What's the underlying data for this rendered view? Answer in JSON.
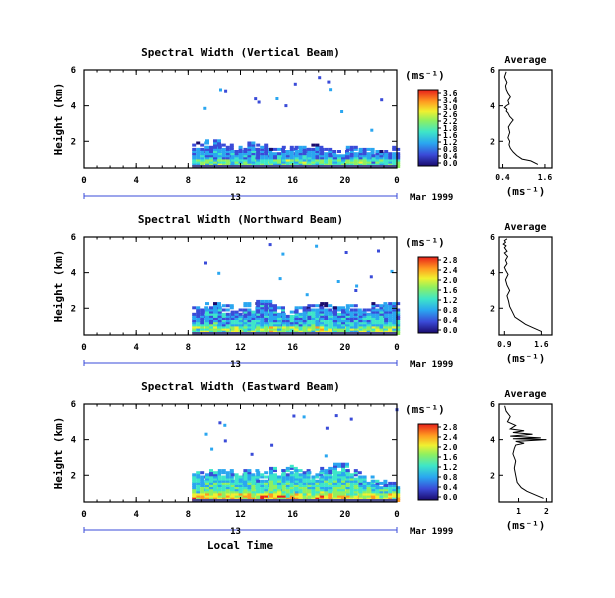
{
  "figure": {
    "xlabel": "Local Time",
    "colors": {
      "axis": "#000000",
      "background": "#ffffff",
      "bottom_band": "#4a4a8a"
    }
  },
  "chart_data": [
    {
      "type": "heatmap",
      "title": "Spectral Width (Vertical Beam)",
      "ylabel": "Height (km)",
      "xlim": [
        0,
        24
      ],
      "ylim": [
        0.5,
        6
      ],
      "x_ticks": [
        "0",
        "4",
        "8",
        "12",
        "16",
        "20",
        "0"
      ],
      "y_ticks": [
        "2",
        "4",
        "6"
      ],
      "date_tick": "13",
      "date_label": "Mar 1999",
      "colorbar": {
        "unit": "(ms⁻¹)",
        "min": 0.0,
        "max": 3.6,
        "ticks": [
          "3.6",
          "3.4",
          "3.0",
          "2.6",
          "2.2",
          "1.8",
          "1.6",
          "1.2",
          "0.8",
          "0.4",
          "0.0"
        ]
      },
      "data_extent": {
        "start_hour": 8.3,
        "end_hour": 24,
        "layer_top_km": [
          1.9,
          2.0,
          1.8,
          1.7,
          1.9,
          1.8,
          1.5,
          1.6,
          1.7,
          1.8,
          1.5,
          1.4,
          1.6,
          1.5,
          1.4,
          1.6
        ],
        "mean_width": 0.8
      },
      "profile": {
        "title": "Average",
        "xlabel": "(ms⁻¹)",
        "xlim": [
          0.3,
          1.8
        ],
        "ylim": [
          0.5,
          6
        ],
        "x_ticks": [
          "0.4",
          "1.6"
        ],
        "y_ticks": [
          "2",
          "4",
          "6"
        ],
        "x": [
          1.4,
          1.2,
          0.95,
          0.8,
          0.7,
          0.62,
          0.58,
          0.6,
          0.55,
          0.6,
          0.56,
          0.62,
          0.7,
          0.6,
          0.55,
          0.5,
          0.52,
          0.45,
          0.5,
          0.58,
          0.55,
          0.62,
          0.55,
          0.5,
          0.48,
          0.52,
          0.45,
          0.5
        ],
        "y": [
          0.7,
          0.9,
          1.0,
          1.2,
          1.4,
          1.6,
          1.8,
          2.0,
          2.2,
          2.5,
          2.8,
          3.0,
          3.2,
          3.4,
          3.6,
          3.7,
          3.8,
          3.9,
          4.0,
          4.1,
          4.3,
          4.5,
          4.7,
          4.9,
          5.1,
          5.3,
          5.6,
          5.9
        ]
      }
    },
    {
      "type": "heatmap",
      "title": "Spectral Width (Northward Beam)",
      "ylabel": "Height (km)",
      "xlim": [
        0,
        24
      ],
      "ylim": [
        0.5,
        6
      ],
      "x_ticks": [
        "0",
        "4",
        "8",
        "12",
        "16",
        "20",
        "0"
      ],
      "y_ticks": [
        "2",
        "4",
        "6"
      ],
      "date_tick": "13",
      "date_label": "Mar 1999",
      "colorbar": {
        "unit": "(ms⁻¹)",
        "min": 0.0,
        "max": 2.8,
        "ticks": [
          "2.8",
          "2.4",
          "2.0",
          "1.6",
          "1.2",
          "0.8",
          "0.4",
          "0.0"
        ]
      },
      "data_extent": {
        "start_hour": 8.3,
        "end_hour": 24,
        "layer_top_km": [
          2.0,
          2.3,
          2.1,
          1.9,
          2.2,
          2.4,
          2.1,
          1.8,
          2.0,
          2.3,
          2.2,
          2.0,
          2.1,
          1.9,
          2.2,
          2.3
        ],
        "mean_width": 0.7
      },
      "profile": {
        "title": "Average",
        "xlabel": "(ms⁻¹)",
        "xlim": [
          0.8,
          1.8
        ],
        "ylim": [
          0.5,
          6
        ],
        "x_ticks": [
          "0.9",
          "1.6"
        ],
        "y_ticks": [
          "2",
          "4",
          "6"
        ],
        "x": [
          1.6,
          1.45,
          1.3,
          1.2,
          1.1,
          1.05,
          1.0,
          0.98,
          0.95,
          1.0,
          0.95,
          0.92,
          0.97,
          0.93,
          0.9,
          0.95,
          0.92,
          0.96,
          0.9,
          0.95,
          0.9,
          0.93,
          0.88,
          0.92,
          0.9,
          0.95
        ],
        "y": [
          0.7,
          0.9,
          1.1,
          1.3,
          1.5,
          1.8,
          2.1,
          2.4,
          2.7,
          3.0,
          3.3,
          3.6,
          3.9,
          4.1,
          4.3,
          4.5,
          4.7,
          4.9,
          5.1,
          5.2,
          5.4,
          5.5,
          5.6,
          5.7,
          5.8,
          5.9
        ]
      }
    },
    {
      "type": "heatmap",
      "title": "Spectral Width (Eastward Beam)",
      "ylabel": "Height (km)",
      "xlim": [
        0,
        24
      ],
      "ylim": [
        0.5,
        6
      ],
      "x_ticks": [
        "0",
        "4",
        "8",
        "12",
        "16",
        "20",
        "0"
      ],
      "y_ticks": [
        "2",
        "4",
        "6"
      ],
      "date_tick": "13",
      "date_label": "Mar 1999",
      "colorbar": {
        "unit": "(ms⁻¹)",
        "min": 0.0,
        "max": 2.8,
        "ticks": [
          "2.8",
          "2.4",
          "2.0",
          "1.6",
          "1.2",
          "0.8",
          "0.4",
          "0.0"
        ]
      },
      "data_extent": {
        "start_hour": 8.3,
        "end_hour": 24,
        "layer_top_km": [
          2.1,
          2.2,
          2.3,
          2.0,
          2.2,
          2.1,
          2.4,
          2.5,
          2.3,
          2.1,
          2.4,
          2.6,
          2.2,
          1.9,
          1.6,
          1.5
        ],
        "mean_width": 1.0
      },
      "profile": {
        "title": "Average",
        "xlabel": "(ms⁻¹)",
        "xlim": [
          0.3,
          2.2
        ],
        "ylim": [
          0.5,
          6
        ],
        "x_ticks": [
          "1",
          "2"
        ],
        "y_ticks": [
          "2",
          "4",
          "6"
        ],
        "x": [
          1.9,
          1.6,
          1.3,
          1.1,
          0.95,
          0.9,
          0.85,
          0.9,
          0.8,
          0.85,
          0.9,
          1.2,
          0.9,
          2.0,
          0.8,
          1.8,
          0.7,
          1.5,
          0.8,
          1.2,
          0.7,
          0.9,
          0.6,
          0.7,
          0.55,
          0.5
        ],
        "y": [
          0.7,
          0.9,
          1.1,
          1.3,
          1.6,
          2.0,
          2.4,
          2.8,
          3.2,
          3.5,
          3.7,
          3.8,
          3.9,
          4.0,
          4.05,
          4.1,
          4.2,
          4.3,
          4.4,
          4.5,
          4.6,
          4.8,
          5.0,
          5.3,
          5.6,
          5.9
        ]
      }
    }
  ]
}
